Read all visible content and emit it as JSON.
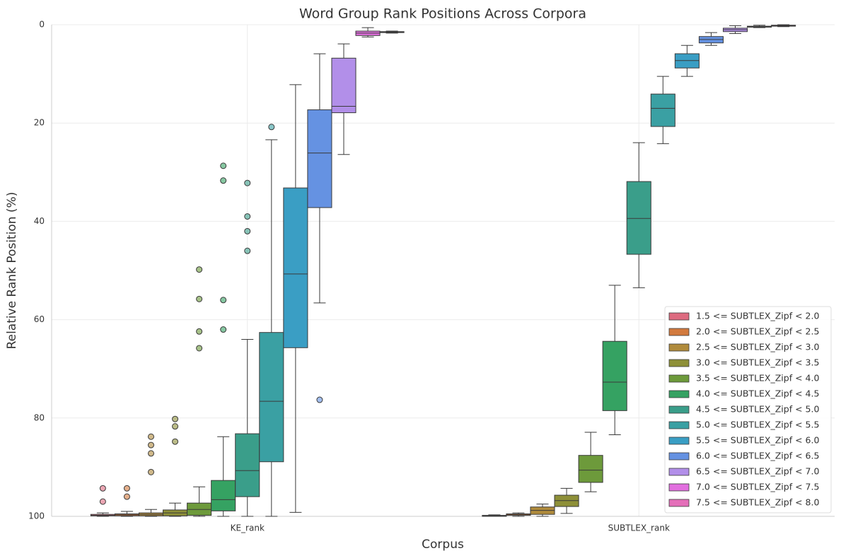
{
  "chart_data": {
    "type": "box",
    "title": "Word Group Rank Positions Across Corpora",
    "x_label": "Corpus",
    "y_label": "Relative Rank Position (%)",
    "categories": [
      "KE_rank",
      "SUBTLEX_rank"
    ],
    "ylim": [
      100,
      0
    ],
    "yticks": [
      0,
      20,
      40,
      60,
      80,
      100
    ],
    "grid": true,
    "legend_position": "lower right",
    "series": [
      {
        "name": "1.5 <= SUBTLEX_Zipf < 2.0",
        "color": "#dd6b80",
        "boxes": [
          {
            "q1": 99.6,
            "median": 99.8,
            "q3": 99.9,
            "whislo": 99.3,
            "whishi": 100,
            "fliers": [
              94.3,
              97
            ]
          },
          {
            "q1": 99.8,
            "median": 99.9,
            "q3": 100,
            "whislo": 99.7,
            "whishi": 100,
            "fliers": []
          }
        ]
      },
      {
        "name": "2.0 <= SUBTLEX_Zipf < 2.5",
        "color": "#d27a3e",
        "boxes": [
          {
            "q1": 99.5,
            "median": 99.7,
            "q3": 99.9,
            "whislo": 99.0,
            "whishi": 100,
            "fliers": [
              94.3,
              96
            ]
          },
          {
            "q1": 99.5,
            "median": 99.7,
            "q3": 99.8,
            "whislo": 99.3,
            "whishi": 100,
            "fliers": []
          }
        ]
      },
      {
        "name": "2.5 <= SUBTLEX_Zipf < 3.0",
        "color": "#b08b3c",
        "boxes": [
          {
            "q1": 99.3,
            "median": 99.6,
            "q3": 99.9,
            "whislo": 98.6,
            "whishi": 100,
            "fliers": [
              83.8,
              85.5,
              87.2,
              91
            ]
          },
          {
            "q1": 98.1,
            "median": 98.8,
            "q3": 99.6,
            "whislo": 97.5,
            "whishi": 100,
            "fliers": []
          }
        ]
      },
      {
        "name": "3.0 <= SUBTLEX_Zipf < 3.5",
        "color": "#8e9038",
        "boxes": [
          {
            "q1": 98.7,
            "median": 99.3,
            "q3": 99.9,
            "whislo": 97.3,
            "whishi": 100,
            "fliers": [
              80.2,
              81.7,
              84.8
            ]
          },
          {
            "q1": 95.7,
            "median": 96.8,
            "q3": 98,
            "whislo": 94.3,
            "whishi": 99.4,
            "fliers": []
          }
        ]
      },
      {
        "name": "3.5 <= SUBTLEX_Zipf < 4.0",
        "color": "#6d9a3b",
        "boxes": [
          {
            "q1": 97.3,
            "median": 98.6,
            "q3": 99.8,
            "whislo": 94,
            "whishi": 100,
            "fliers": [
              49.8,
              55.8,
              62.4,
              65.8
            ]
          },
          {
            "q1": 87.6,
            "median": 90.6,
            "q3": 93.1,
            "whislo": 82.9,
            "whishi": 95,
            "fliers": []
          }
        ]
      },
      {
        "name": "4.0 <= SUBTLEX_Zipf < 4.5",
        "color": "#35a262",
        "boxes": [
          {
            "q1": 92.7,
            "median": 96.6,
            "q3": 98.9,
            "whislo": 83.8,
            "whishi": 100,
            "fliers": [
              28.7,
              31.7,
              56,
              62
            ]
          },
          {
            "q1": 64.4,
            "median": 72.7,
            "q3": 78.5,
            "whislo": 53,
            "whishi": 83.4,
            "fliers": []
          }
        ]
      },
      {
        "name": "4.5 <= SUBTLEX_Zipf < 5.0",
        "color": "#3a9e8a",
        "boxes": [
          {
            "q1": 83.2,
            "median": 90.7,
            "q3": 96,
            "whislo": 64,
            "whishi": 100,
            "fliers": [
              32.2,
              39,
              42,
              46
            ]
          },
          {
            "q1": 31.9,
            "median": 39.4,
            "q3": 46.7,
            "whislo": 24,
            "whishi": 53.5,
            "fliers": []
          }
        ]
      },
      {
        "name": "5.0 <= SUBTLEX_Zipf < 5.5",
        "color": "#3aa0a3",
        "boxes": [
          {
            "q1": 62.6,
            "median": 76.6,
            "q3": 88.9,
            "whislo": 23.4,
            "whishi": 100,
            "fliers": [
              20.8
            ]
          },
          {
            "q1": 14.1,
            "median": 17,
            "q3": 20.7,
            "whislo": 10.5,
            "whishi": 24.2,
            "fliers": []
          }
        ]
      },
      {
        "name": "5.5 <= SUBTLEX_Zipf < 6.0",
        "color": "#3a9ec4",
        "boxes": [
          {
            "q1": 33.2,
            "median": 50.7,
            "q3": 65.7,
            "whislo": 12.2,
            "whishi": 99.2,
            "fliers": []
          },
          {
            "q1": 5.9,
            "median": 7.3,
            "q3": 8.8,
            "whislo": 4.2,
            "whishi": 10.5,
            "fliers": []
          }
        ]
      },
      {
        "name": "6.0 <= SUBTLEX_Zipf < 6.5",
        "color": "#6592e2",
        "boxes": [
          {
            "q1": 17.3,
            "median": 26.1,
            "q3": 37.2,
            "whislo": 5.9,
            "whishi": 56.6,
            "fliers": [
              76.3
            ]
          },
          {
            "q1": 2.4,
            "median": 3,
            "q3": 3.7,
            "whislo": 1.6,
            "whishi": 4.2,
            "fliers": []
          }
        ]
      },
      {
        "name": "6.5 <= SUBTLEX_Zipf < 7.0",
        "color": "#b28fe9",
        "boxes": [
          {
            "q1": 6.8,
            "median": 16.6,
            "q3": 17.9,
            "whislo": 3.9,
            "whishi": 26.4,
            "fliers": []
          },
          {
            "q1": 0.7,
            "median": 1,
            "q3": 1.4,
            "whislo": 0.2,
            "whishi": 1.8,
            "fliers": []
          }
        ]
      },
      {
        "name": "7.0 <= SUBTLEX_Zipf < 7.5",
        "color": "#e26fdf",
        "boxes": [
          {
            "q1": 1.3,
            "median": 1.7,
            "q3": 2.2,
            "whislo": 0.6,
            "whishi": 2.5,
            "fliers": []
          },
          {
            "q1": 0.3,
            "median": 0.4,
            "q3": 0.5,
            "whislo": 0.1,
            "whishi": 0.6,
            "fliers": []
          }
        ]
      },
      {
        "name": "7.5 <= SUBTLEX_Zipf < 8.0",
        "color": "#e46fb9",
        "boxes": [
          {
            "q1": 1.4,
            "median": 1.5,
            "q3": 1.6,
            "whislo": 1.3,
            "whishi": 1.7,
            "fliers": []
          },
          {
            "q1": 0.1,
            "median": 0.2,
            "q3": 0.3,
            "whislo": 0,
            "whishi": 0.4,
            "fliers": []
          }
        ]
      }
    ]
  }
}
